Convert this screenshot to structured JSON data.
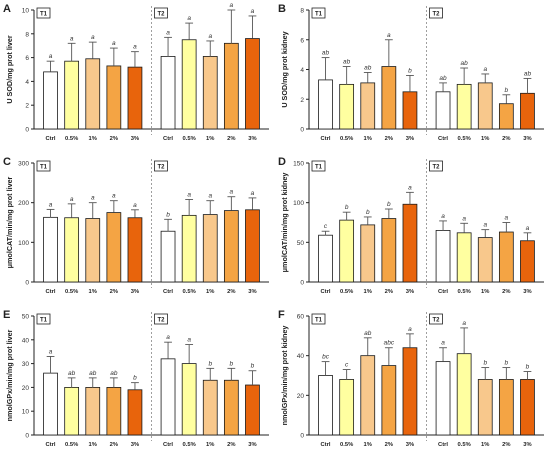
{
  "colors": {
    "bar_fills": [
      "#ffffff",
      "#ffffa0",
      "#f8c88c",
      "#f4a444",
      "#e8640c"
    ],
    "bar_stroke": "#1a1a1a",
    "error_bar": "#555555",
    "divider": "#777777"
  },
  "chart_data": [
    {
      "type": "bar",
      "panel_letter": "A",
      "ylabel": "U SOD/mg prot liver",
      "ylim": [
        0,
        10
      ],
      "yticks": [
        0,
        2,
        4,
        6,
        8,
        10
      ],
      "groups": [
        {
          "label": "T1",
          "categories": [
            "Ctrl",
            "0.5%",
            "1%",
            "2%",
            "3%"
          ],
          "values": [
            4.8,
            5.7,
            5.9,
            5.3,
            5.2
          ],
          "errors": [
            0.9,
            1.5,
            1.4,
            1.5,
            1.3
          ],
          "letters": [
            "a",
            "a",
            "a",
            "a",
            "a"
          ]
        },
        {
          "label": "T2",
          "categories": [
            "Ctrl",
            "0.5%",
            "1%",
            "2%",
            "3%"
          ],
          "values": [
            6.1,
            7.5,
            6.1,
            7.2,
            7.6
          ],
          "errors": [
            1.6,
            1.4,
            1.3,
            2.8,
            1.9
          ],
          "letters": [
            "a",
            "a",
            "a",
            "a",
            "a"
          ]
        }
      ]
    },
    {
      "type": "bar",
      "panel_letter": "B",
      "ylabel": "U SOD/mg prot kidney",
      "ylim": [
        0,
        8
      ],
      "yticks": [
        0,
        2,
        4,
        6,
        8
      ],
      "groups": [
        {
          "label": "T1",
          "categories": [
            "Ctrl",
            "0.5%",
            "1%",
            "2%",
            "3%"
          ],
          "values": [
            3.3,
            3.0,
            3.1,
            4.2,
            2.5
          ],
          "errors": [
            1.5,
            1.2,
            0.7,
            1.8,
            1.1
          ],
          "letters": [
            "ab",
            "ab",
            "ab",
            "a",
            "b"
          ]
        },
        {
          "label": "T2",
          "categories": [
            "Ctrl",
            "0.5%",
            "1%",
            "2%",
            "3%"
          ],
          "values": [
            2.5,
            3.0,
            3.1,
            1.7,
            2.4
          ],
          "errors": [
            0.6,
            1.1,
            0.6,
            0.6,
            1.0
          ],
          "letters": [
            "ab",
            "ab",
            "a",
            "b",
            "ab"
          ]
        }
      ]
    },
    {
      "type": "bar",
      "panel_letter": "C",
      "ylabel": "μmolCAT/min/mg prot liver",
      "ylim": [
        0,
        300
      ],
      "yticks": [
        0,
        100,
        200,
        300
      ],
      "groups": [
        {
          "label": "T1",
          "categories": [
            "Ctrl",
            "0.5%",
            "1%",
            "2%",
            "3%"
          ],
          "values": [
            163,
            162,
            160,
            175,
            162
          ],
          "errors": [
            20,
            35,
            40,
            30,
            20
          ],
          "letters": [
            "a",
            "a",
            "a",
            "a",
            "a"
          ]
        },
        {
          "label": "T2",
          "categories": [
            "Ctrl",
            "0.5%",
            "1%",
            "2%",
            "3%"
          ],
          "values": [
            128,
            168,
            170,
            180,
            182
          ],
          "errors": [
            30,
            40,
            35,
            35,
            30
          ],
          "letters": [
            "b",
            "a",
            "a",
            "a",
            "a"
          ]
        }
      ]
    },
    {
      "type": "bar",
      "panel_letter": "D",
      "ylabel": "μmolCAT/min/mg prot kidney",
      "ylim": [
        0,
        150
      ],
      "yticks": [
        0,
        50,
        100,
        150
      ],
      "groups": [
        {
          "label": "T1",
          "categories": [
            "Ctrl",
            "0.5%",
            "1%",
            "2%",
            "3%"
          ],
          "values": [
            59,
            78,
            72,
            80,
            98
          ],
          "errors": [
            5,
            10,
            10,
            12,
            15
          ],
          "letters": [
            "c",
            "b",
            "b",
            "b",
            "a"
          ]
        },
        {
          "label": "T2",
          "categories": [
            "Ctrl",
            "0.5%",
            "1%",
            "2%",
            "3%"
          ],
          "values": [
            65,
            62,
            56,
            63,
            52
          ],
          "errors": [
            12,
            12,
            10,
            12,
            10
          ],
          "letters": [
            "a",
            "a",
            "a",
            "a",
            "a"
          ]
        }
      ]
    },
    {
      "type": "bar",
      "panel_letter": "E",
      "ylabel": "nmolGPx/min/mg prot liver",
      "ylim": [
        0,
        50
      ],
      "yticks": [
        0,
        10,
        20,
        30,
        40,
        50
      ],
      "groups": [
        {
          "label": "T1",
          "categories": [
            "Ctrl",
            "0.5%",
            "1%",
            "2%",
            "3%"
          ],
          "values": [
            26,
            20,
            20,
            20,
            19
          ],
          "errors": [
            7,
            4,
            4,
            4,
            3
          ],
          "letters": [
            "a",
            "ab",
            "ab",
            "ab",
            "b"
          ]
        },
        {
          "label": "T2",
          "categories": [
            "Ctrl",
            "0.5%",
            "1%",
            "2%",
            "3%"
          ],
          "values": [
            32,
            30,
            23,
            23,
            21
          ],
          "errors": [
            7,
            8,
            5,
            5,
            6
          ],
          "letters": [
            "a",
            "a",
            "b",
            "b",
            "b"
          ]
        }
      ]
    },
    {
      "type": "bar",
      "panel_letter": "F",
      "ylabel": "nmolGPx/min/mg prot kidney",
      "ylim": [
        0,
        60
      ],
      "yticks": [
        0,
        20,
        40,
        60
      ],
      "groups": [
        {
          "label": "T1",
          "categories": [
            "Ctrl",
            "0.5%",
            "1%",
            "2%",
            "3%"
          ],
          "values": [
            30,
            28,
            40,
            35,
            44
          ],
          "errors": [
            7,
            5,
            9,
            9,
            7
          ],
          "letters": [
            "bc",
            "c",
            "ab",
            "abc",
            "a"
          ]
        },
        {
          "label": "T2",
          "categories": [
            "Ctrl",
            "0.5%",
            "1%",
            "2%",
            "3%"
          ],
          "values": [
            37,
            41,
            28,
            28,
            28
          ],
          "errors": [
            7,
            13,
            6,
            6,
            4
          ],
          "letters": [
            "a",
            "a",
            "b",
            "b",
            "b"
          ]
        }
      ]
    }
  ]
}
